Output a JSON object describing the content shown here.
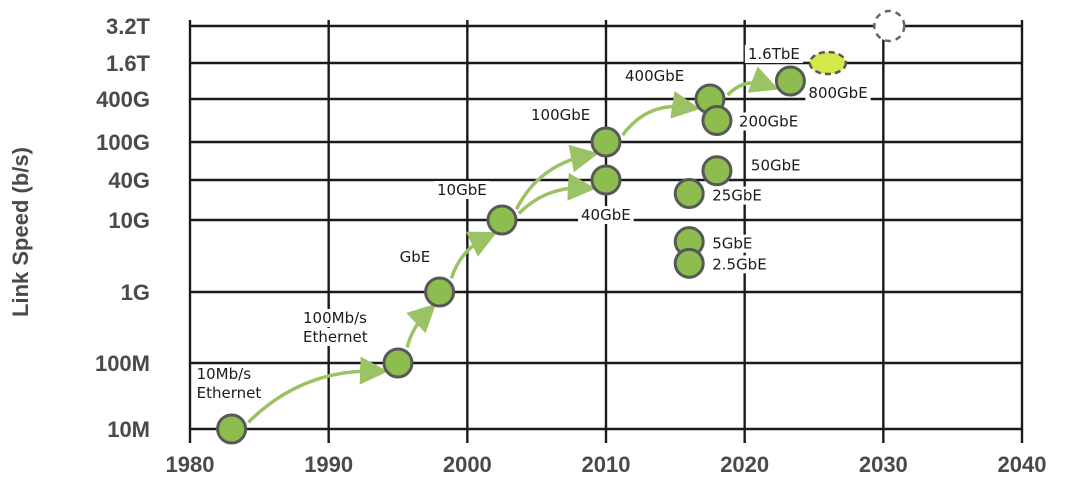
{
  "chart_data": {
    "type": "scatter",
    "title": "",
    "xlabel": "",
    "ylabel": "Link Speed (b/s)",
    "xlim": [
      1980,
      2040
    ],
    "x_ticks": [
      "1980",
      "1990",
      "2000",
      "2010",
      "2020",
      "2030",
      "2040"
    ],
    "y_scale": "log",
    "y_ticks": [
      {
        "label": "10M",
        "value": 10000000
      },
      {
        "label": "100M",
        "value": 100000000
      },
      {
        "label": "1G",
        "value": 1000000000
      },
      {
        "label": "10G",
        "value": 10000000000
      },
      {
        "label": "40G",
        "value": 40000000000
      },
      {
        "label": "100G",
        "value": 100000000000
      },
      {
        "label": "400G",
        "value": 400000000000
      },
      {
        "label": "1.6T",
        "value": 1600000000000
      },
      {
        "label": "3.2T",
        "value": 3200000000000
      }
    ],
    "grid": true,
    "colors": {
      "marker": "#8dbd4f",
      "marker_future": "#d4e84a",
      "arrow": "#9cc266",
      "grid": "#1a1a1a"
    },
    "points": [
      {
        "label": "10Mb/s Ethernet",
        "x": 1983,
        "y": 10000000
      },
      {
        "label": "100Mb/s Ethernet",
        "x": 1995,
        "y": 100000000
      },
      {
        "label": "GbE",
        "x": 1998,
        "y": 1000000000
      },
      {
        "label": "10GbE",
        "x": 2002.5,
        "y": 10000000000
      },
      {
        "label": "40GbE",
        "x": 2010,
        "y": 40000000000
      },
      {
        "label": "100GbE",
        "x": 2010,
        "y": 100000000000
      },
      {
        "label": "400GbE",
        "x": 2017.5,
        "y": 400000000000
      },
      {
        "label": "200GbE",
        "x": 2018,
        "y": 200000000000
      },
      {
        "label": "50GbE",
        "x": 2018,
        "y": 50000000000
      },
      {
        "label": "25GbE",
        "x": 2016,
        "y": 25000000000
      },
      {
        "label": "5GbE",
        "x": 2016,
        "y": 5000000000
      },
      {
        "label": "2.5GbE",
        "x": 2016,
        "y": 2500000000
      },
      {
        "label": "800GbE",
        "x": 2023.3,
        "y": 800000000000
      },
      {
        "label": "1.6TbE",
        "x": 2026,
        "y": 1600000000000,
        "style": "planned"
      },
      {
        "label": "",
        "x": 2030,
        "y": 3200000000000,
        "style": "future"
      }
    ]
  }
}
